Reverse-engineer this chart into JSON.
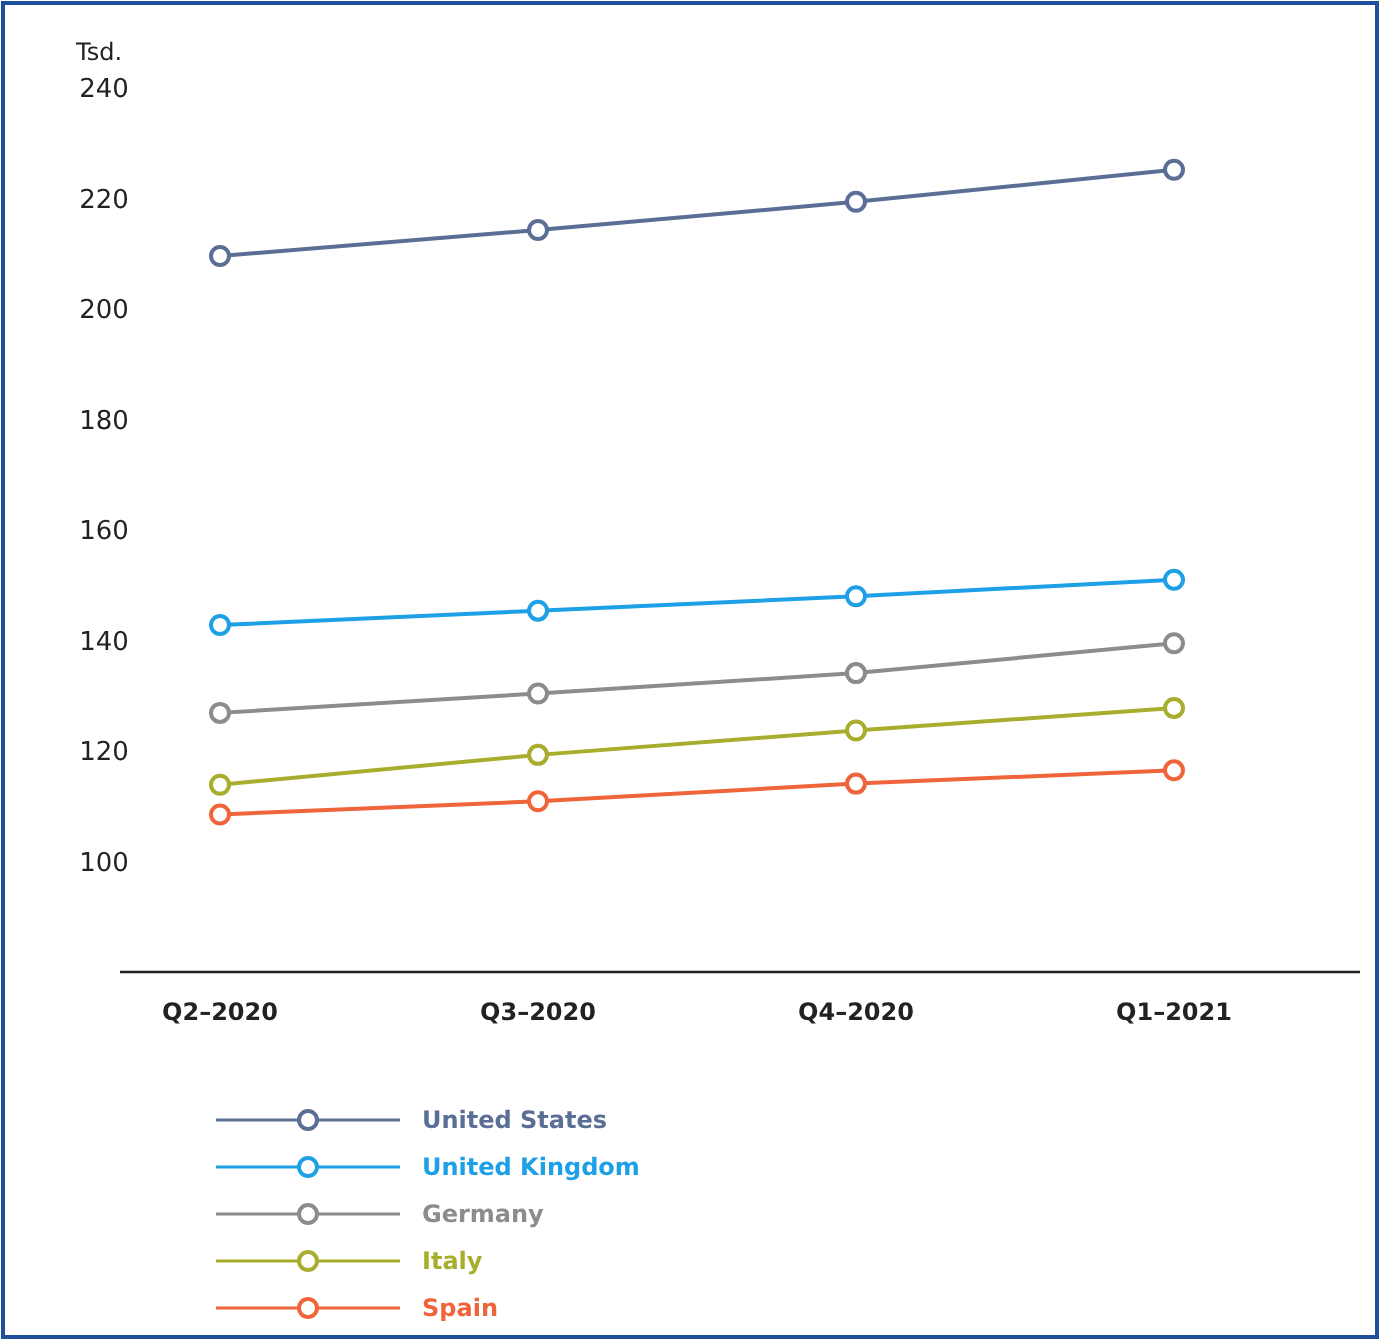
{
  "chart_data": {
    "type": "line",
    "ylabel": "Tsd.",
    "categories": [
      "Q2–2020",
      "Q3–2020",
      "Q4–2020",
      "Q1–2021"
    ],
    "series": [
      {
        "name": "United States",
        "color": "#5a6e96",
        "values": [
          209.6,
          214.3,
          219.4,
          225.2
        ]
      },
      {
        "name": "United Kingdom",
        "color": "#1ea0e6",
        "values": [
          142.8,
          145.4,
          148,
          151
        ]
      },
      {
        "name": "Germany",
        "color": "#8c8c8c",
        "values": [
          126.9,
          130.4,
          134.1,
          139.5
        ]
      },
      {
        "name": "Italy",
        "color": "#a8ad2d",
        "values": [
          113.9,
          119.3,
          123.7,
          127.8
        ]
      },
      {
        "name": "Spain",
        "color": "#f0643c",
        "values": [
          108.5,
          110.9,
          114.1,
          116.5
        ]
      }
    ],
    "ylim": [
      80,
      240
    ],
    "yticks": [
      100,
      120,
      140,
      160,
      180,
      200,
      220,
      240
    ],
    "grid": false,
    "legend": "bottom",
    "marker": "circle",
    "line_style": "solid"
  }
}
